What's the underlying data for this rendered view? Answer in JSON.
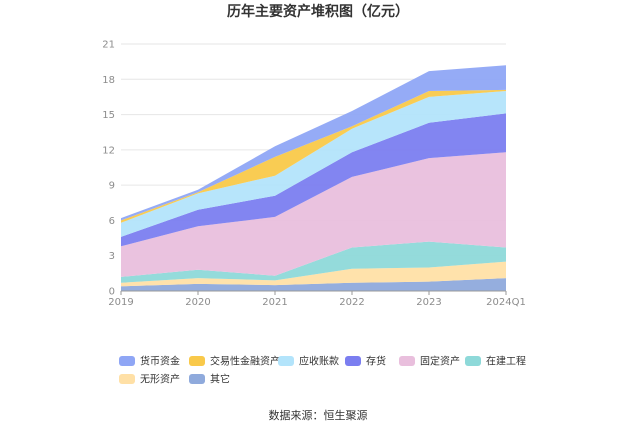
{
  "chart_data": {
    "type": "area",
    "stacked": true,
    "title": "历年主要资产堆积图（亿元）",
    "categories": [
      "2019",
      "2020",
      "2021",
      "2022",
      "2023",
      "2024Q1"
    ],
    "ylim": [
      0,
      21
    ],
    "yticks": [
      "0",
      "3",
      "6",
      "9",
      "12",
      "15",
      "18",
      "21"
    ],
    "grid": true,
    "legend_position": "bottom",
    "series": [
      {
        "name": "其它",
        "color": "#8faadc",
        "values": [
          0.4,
          0.6,
          0.5,
          0.7,
          0.8,
          1.1
        ]
      },
      {
        "name": "无形资产",
        "color": "#ffe0a6",
        "values": [
          0.3,
          0.5,
          0.4,
          1.2,
          1.2,
          1.4
        ]
      },
      {
        "name": "在建工程",
        "color": "#8ed9d9",
        "values": [
          0.5,
          0.7,
          0.4,
          1.8,
          2.2,
          1.2
        ]
      },
      {
        "name": "固定资产",
        "color": "#e9bfdd",
        "values": [
          2.6,
          3.7,
          5.0,
          6.0,
          7.1,
          8.1
        ]
      },
      {
        "name": "存货",
        "color": "#7b7ef0",
        "values": [
          0.8,
          1.4,
          1.8,
          2.1,
          3.0,
          3.3
        ]
      },
      {
        "name": "应收账款",
        "color": "#b3e4fb",
        "values": [
          1.2,
          1.4,
          1.7,
          2.0,
          2.2,
          1.9
        ]
      },
      {
        "name": "交易性金融资产",
        "color": "#f9c94a",
        "values": [
          0.2,
          0.1,
          1.6,
          0.2,
          0.5,
          0.1
        ]
      },
      {
        "name": "货币资金",
        "color": "#8fa6f5",
        "values": [
          0.2,
          0.2,
          0.9,
          1.3,
          1.7,
          2.1
        ]
      }
    ],
    "legend_order": [
      "货币资金",
      "交易性金融资产",
      "应收账款",
      "存货",
      "固定资产",
      "在建工程",
      "无形资产",
      "其它"
    ]
  },
  "source_text": "数据来源：恒生聚源"
}
